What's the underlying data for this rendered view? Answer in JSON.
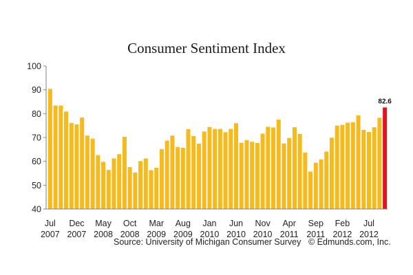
{
  "chart_data": {
    "type": "bar",
    "title": "Consumer Sentiment Index",
    "xlabel": "",
    "ylabel": "",
    "ylim": [
      40,
      100
    ],
    "yticks": [
      40,
      50,
      60,
      70,
      80,
      90,
      100
    ],
    "grid": false,
    "colors": {
      "bar": "#F6BA1C",
      "highlight": "#E0141E",
      "axis": "#808080"
    },
    "categories": [
      "Jul 2007",
      "Aug 2007",
      "Sep 2007",
      "Oct 2007",
      "Nov 2007",
      "Dec 2007",
      "Jan 2008",
      "Feb 2008",
      "Mar 2008",
      "Apr 2008",
      "May 2008",
      "Jun 2008",
      "Jul 2008",
      "Aug 2008",
      "Sep 2008",
      "Oct 2008",
      "Nov 2008",
      "Dec 2008",
      "Jan 2009",
      "Feb 2009",
      "Mar 2009",
      "Apr 2009",
      "May 2009",
      "Jun 2009",
      "Jul 2009",
      "Aug 2009",
      "Sep 2009",
      "Oct 2009",
      "Nov 2009",
      "Dec 2009",
      "Jan 2010",
      "Feb 2010",
      "Mar 2010",
      "Apr 2010",
      "May 2010",
      "Jun 2010",
      "Jul 2010",
      "Aug 2010",
      "Sep 2010",
      "Oct 2010",
      "Nov 2010",
      "Dec 2010",
      "Jan 2011",
      "Feb 2011",
      "Mar 2011",
      "Apr 2011",
      "May 2011",
      "Jun 2011",
      "Jul 2011",
      "Aug 2011",
      "Sep 2011",
      "Oct 2011",
      "Nov 2011",
      "Dec 2011",
      "Jan 2012",
      "Feb 2012",
      "Mar 2012",
      "Apr 2012",
      "May 2012",
      "Jun 2012",
      "Jul 2012",
      "Aug 2012",
      "Sep 2012",
      "Oct 2012"
    ],
    "values": [
      90.4,
      83.4,
      83.4,
      80.9,
      76.1,
      75.5,
      78.4,
      70.8,
      69.5,
      62.6,
      59.8,
      56.4,
      61.2,
      63.0,
      70.3,
      57.6,
      55.3,
      60.1,
      61.2,
      56.3,
      57.3,
      65.1,
      68.7,
      70.8,
      66.0,
      65.7,
      73.5,
      70.6,
      67.4,
      72.5,
      74.4,
      73.6,
      73.6,
      72.2,
      73.6,
      76.0,
      67.8,
      68.9,
      68.2,
      67.7,
      71.6,
      74.5,
      74.2,
      77.5,
      67.5,
      69.8,
      74.3,
      71.5,
      63.7,
      55.7,
      59.4,
      60.8,
      64.1,
      69.9,
      75.0,
      75.3,
      76.2,
      76.4,
      79.3,
      73.2,
      72.3,
      74.3,
      78.3,
      82.6
    ],
    "highlight_index": 63,
    "data_labels": [
      {
        "index": 63,
        "text": "82.6"
      }
    ],
    "xtick_labels": [
      {
        "index": 0,
        "month": "Jul",
        "year": "2007"
      },
      {
        "index": 5,
        "month": "Dec",
        "year": "2007"
      },
      {
        "index": 10,
        "month": "May",
        "year": "2008"
      },
      {
        "index": 15,
        "month": "Oct",
        "year": "2008"
      },
      {
        "index": 20,
        "month": "Mar",
        "year": "2009"
      },
      {
        "index": 25,
        "month": "Aug",
        "year": "2009"
      },
      {
        "index": 30,
        "month": "Jan",
        "year": "2010"
      },
      {
        "index": 35,
        "month": "Jun",
        "year": "2010"
      },
      {
        "index": 40,
        "month": "Nov",
        "year": "2010"
      },
      {
        "index": 45,
        "month": "Apr",
        "year": "2011"
      },
      {
        "index": 50,
        "month": "Sep",
        "year": "2011"
      },
      {
        "index": 55,
        "month": "Feb",
        "year": "2012"
      },
      {
        "index": 60,
        "month": "Jul",
        "year": "2012"
      }
    ]
  },
  "footer": {
    "source": "Source: University of Michigan Consumer Survey",
    "credit": "© Edmunds.com, Inc."
  }
}
